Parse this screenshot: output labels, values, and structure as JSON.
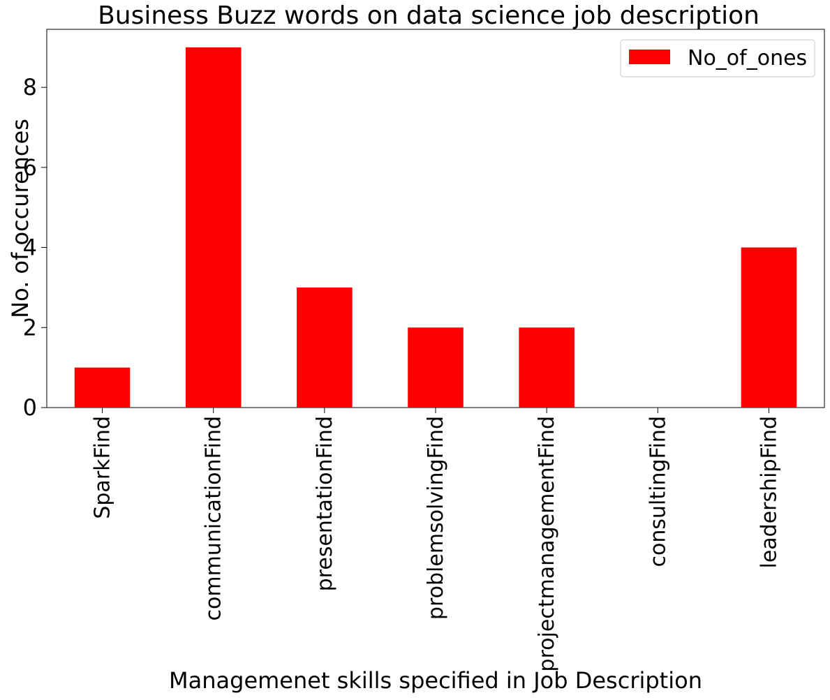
{
  "chart_data": {
    "type": "bar",
    "title": "Business Buzz words on data science job description",
    "xlabel": "Managemenet skills specified in Job Description",
    "ylabel": "No. of occurences",
    "categories": [
      "SparkFind",
      "communicationFind",
      "presentationFind",
      "problemsolvingFind",
      "projectmanagementFind",
      "consultingFind",
      "leadershipFind"
    ],
    "series": [
      {
        "name": "No_of_ones",
        "values": [
          1,
          9,
          3,
          2,
          2,
          0,
          4
        ],
        "color": "#ff0000"
      }
    ],
    "ylim": [
      0,
      9.45
    ],
    "yticks": [
      "0",
      "2",
      "4",
      "6",
      "8"
    ],
    "grid": false,
    "legend_position": "top-right"
  }
}
